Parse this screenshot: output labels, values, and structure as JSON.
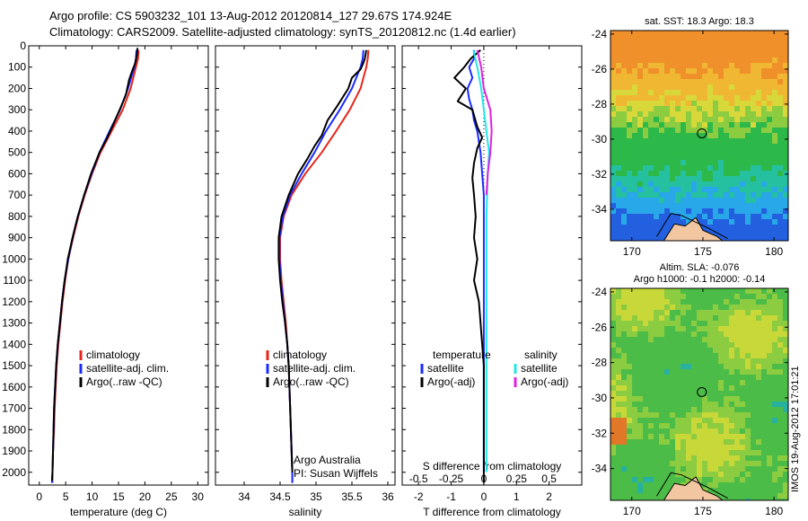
{
  "header": {
    "line1": "Argo profile: CS 5903232_101 13-Aug-2012 20120814_127 29.67S 174.924E",
    "line2": "Climatology: CARS2009. Satellite-adjusted climatology: synTS_20120812.nc (1.4d earlier)"
  },
  "stamp": "IMOS 19-Aug-2012 17:01:21",
  "depth_ticks": [
    0,
    100,
    200,
    300,
    400,
    500,
    600,
    700,
    800,
    900,
    1000,
    1100,
    1200,
    1300,
    1400,
    1500,
    1600,
    1700,
    1800,
    1900,
    2000
  ],
  "colors": {
    "climatology": "#e8251a",
    "satellite": "#1a2bff",
    "argo": "#000000",
    "sal_satellite": "#20e8e8",
    "sal_argo": "#e020e0"
  },
  "chart_data": [
    {
      "type": "line",
      "name": "temperature profile",
      "xlabel": "temperature (deg C)",
      "ylabel": "",
      "xlim": [
        -2,
        32
      ],
      "ylim": [
        2060,
        0
      ],
      "xticks": [
        0,
        5,
        10,
        15,
        20,
        25,
        30
      ],
      "legend": {
        "placement": "lower-center",
        "entries": [
          "climatology",
          "satellite-adj. clim.",
          "Argo(..raw -QC)"
        ]
      },
      "series": [
        {
          "name": "climatology",
          "color": "#e8251a",
          "points": [
            [
              18.8,
              20
            ],
            [
              18.7,
              60
            ],
            [
              18.3,
              100
            ],
            [
              17.3,
              200
            ],
            [
              15.8,
              300
            ],
            [
              13.7,
              400
            ],
            [
              11.6,
              500
            ],
            [
              10,
              600
            ],
            [
              8.6,
              700
            ],
            [
              7.4,
              800
            ],
            [
              6.4,
              900
            ],
            [
              5.5,
              1000
            ],
            [
              4.9,
              1100
            ],
            [
              4.4,
              1200
            ],
            [
              4,
              1300
            ],
            [
              3.6,
              1400
            ],
            [
              3.3,
              1500
            ],
            [
              3.1,
              1600
            ],
            [
              2.9,
              1700
            ],
            [
              2.8,
              1800
            ],
            [
              2.6,
              1900
            ],
            [
              2.5,
              2000
            ],
            [
              2.5,
              2050
            ]
          ]
        },
        {
          "name": "satellite-adj. clim.",
          "color": "#1a2bff",
          "points": [
            [
              18.4,
              20
            ],
            [
              18.3,
              60
            ],
            [
              18,
              100
            ],
            [
              16.8,
              200
            ],
            [
              15.3,
              300
            ],
            [
              13.3,
              400
            ],
            [
              11.4,
              500
            ],
            [
              9.9,
              600
            ],
            [
              8.5,
              700
            ],
            [
              7.3,
              800
            ],
            [
              6.3,
              900
            ],
            [
              5.5,
              1000
            ],
            [
              4.8,
              1100
            ],
            [
              4.3,
              1200
            ],
            [
              3.9,
              1300
            ],
            [
              3.5,
              1400
            ],
            [
              3.2,
              1500
            ],
            [
              3,
              1600
            ],
            [
              2.8,
              1700
            ],
            [
              2.7,
              1800
            ],
            [
              2.6,
              1900
            ],
            [
              2.5,
              2000
            ],
            [
              2.4,
              2050
            ]
          ]
        },
        {
          "name": "Argo(..raw -QC)",
          "color": "#000000",
          "points": [
            [
              18.6,
              10
            ],
            [
              18.5,
              40
            ],
            [
              18.2,
              80
            ],
            [
              17.7,
              110
            ],
            [
              17,
              160
            ],
            [
              16.4,
              230
            ],
            [
              15.4,
              290
            ],
            [
              13.8,
              380
            ],
            [
              12.9,
              430
            ],
            [
              11.4,
              500
            ],
            [
              9.8,
              600
            ],
            [
              8.5,
              700
            ],
            [
              7.3,
              800
            ],
            [
              6.3,
              900
            ],
            [
              5.4,
              1000
            ],
            [
              4.8,
              1100
            ],
            [
              4.3,
              1200
            ],
            [
              3.9,
              1300
            ],
            [
              3.5,
              1400
            ],
            [
              3.2,
              1500
            ],
            [
              3,
              1600
            ],
            [
              2.8,
              1700
            ],
            [
              2.7,
              1800
            ],
            [
              2.6,
              1900
            ],
            [
              2.5,
              2000
            ],
            [
              2.4,
              2040
            ]
          ]
        }
      ]
    },
    {
      "type": "line",
      "name": "salinity profile",
      "xlabel": "salinity",
      "ylabel": "",
      "xlim": [
        33.6,
        36.1
      ],
      "ylim": [
        2060,
        0
      ],
      "xticks": [
        34,
        34.5,
        35,
        35.5,
        36
      ],
      "legend": {
        "placement": "lower-center",
        "entries": [
          "climatology",
          "satellite-adj. clim.",
          "Argo(..raw -QC)"
        ]
      },
      "annotations": [
        "Argo Australia",
        "PI: Susan Wijffels"
      ],
      "series": [
        {
          "name": "climatology",
          "color": "#e8251a",
          "points": [
            [
              35.73,
              20
            ],
            [
              35.72,
              60
            ],
            [
              35.7,
              100
            ],
            [
              35.62,
              200
            ],
            [
              35.47,
              300
            ],
            [
              35.28,
              400
            ],
            [
              35.08,
              500
            ],
            [
              34.85,
              600
            ],
            [
              34.66,
              700
            ],
            [
              34.55,
              800
            ],
            [
              34.5,
              900
            ],
            [
              34.5,
              1000
            ],
            [
              34.52,
              1100
            ],
            [
              34.55,
              1200
            ],
            [
              34.58,
              1300
            ],
            [
              34.6,
              1400
            ],
            [
              34.62,
              1500
            ],
            [
              34.63,
              1600
            ],
            [
              34.64,
              1700
            ],
            [
              34.65,
              1800
            ],
            [
              34.66,
              1900
            ],
            [
              34.67,
              2000
            ],
            [
              34.67,
              2050
            ]
          ]
        },
        {
          "name": "satellite-adj. clim.",
          "color": "#1a2bff",
          "points": [
            [
              35.66,
              20
            ],
            [
              35.65,
              60
            ],
            [
              35.62,
              100
            ],
            [
              35.5,
              200
            ],
            [
              35.33,
              300
            ],
            [
              35.14,
              400
            ],
            [
              34.98,
              500
            ],
            [
              34.8,
              600
            ],
            [
              34.64,
              700
            ],
            [
              34.54,
              800
            ],
            [
              34.49,
              900
            ],
            [
              34.49,
              1000
            ],
            [
              34.51,
              1100
            ],
            [
              34.54,
              1200
            ],
            [
              34.57,
              1300
            ],
            [
              34.6,
              1400
            ],
            [
              34.62,
              1500
            ],
            [
              34.63,
              1600
            ],
            [
              34.64,
              1700
            ],
            [
              34.65,
              1800
            ],
            [
              34.66,
              1900
            ],
            [
              34.67,
              2000
            ],
            [
              34.67,
              2050
            ]
          ]
        },
        {
          "name": "Argo(..raw -QC)",
          "color": "#000000",
          "points": [
            [
              35.7,
              20
            ],
            [
              35.68,
              60
            ],
            [
              35.66,
              80
            ],
            [
              35.62,
              110
            ],
            [
              35.5,
              150
            ],
            [
              35.45,
              200
            ],
            [
              35.3,
              280
            ],
            [
              35.16,
              350
            ],
            [
              35.08,
              420
            ],
            [
              34.98,
              470
            ],
            [
              34.88,
              530
            ],
            [
              34.75,
              600
            ],
            [
              34.62,
              700
            ],
            [
              34.52,
              800
            ],
            [
              34.48,
              900
            ],
            [
              34.48,
              1000
            ],
            [
              34.5,
              1100
            ],
            [
              34.53,
              1200
            ],
            [
              34.57,
              1300
            ],
            [
              34.6,
              1400
            ],
            [
              34.62,
              1500
            ],
            [
              34.63,
              1600
            ],
            [
              34.64,
              1700
            ],
            [
              34.65,
              1800
            ],
            [
              34.66,
              1900
            ],
            [
              34.67,
              2000
            ]
          ]
        }
      ]
    },
    {
      "type": "line",
      "name": "difference from climatology",
      "xlabel": "T difference from climatology",
      "xlabel_top": "S difference from climatology",
      "ylabel": "",
      "xlim": [
        -2.5,
        3.0
      ],
      "ylim": [
        2060,
        0
      ],
      "xticks": [
        -2,
        -1,
        0,
        1,
        2
      ],
      "xticks_s": [
        "-0.5",
        "-0.25",
        "0",
        "0.25",
        "0.5"
      ],
      "legend_temperature": {
        "heading": "temperature",
        "entries": [
          "satellite",
          "Argo(-adj)"
        ]
      },
      "legend_salinity": {
        "heading": "salinity",
        "entries": [
          "satellite",
          "Argo(-adj)"
        ]
      },
      "series": [
        {
          "name": "satellite",
          "color": "#1a2bff",
          "points": [
            [
              -0.3,
              20
            ],
            [
              -0.3,
              60
            ],
            [
              -0.45,
              100
            ],
            [
              -0.35,
              150
            ],
            [
              -0.5,
              200
            ],
            [
              -0.45,
              250
            ],
            [
              -0.35,
              300
            ],
            [
              -0.3,
              350
            ],
            [
              -0.2,
              400
            ],
            [
              -0.15,
              450
            ],
            [
              -0.1,
              500
            ],
            [
              -0.05,
              600
            ],
            [
              0,
              700
            ],
            [
              0,
              1000
            ],
            [
              0,
              2000
            ]
          ]
        },
        {
          "name": "Argo(-adj)",
          "color": "#000000",
          "points": [
            [
              -0.1,
              20
            ],
            [
              -0.4,
              60
            ],
            [
              -0.6,
              100
            ],
            [
              -0.9,
              150
            ],
            [
              -0.55,
              200
            ],
            [
              -0.8,
              260
            ],
            [
              -0.35,
              300
            ],
            [
              -0.2,
              380
            ],
            [
              -0.05,
              430
            ],
            [
              -0.2,
              480
            ],
            [
              -0.3,
              550
            ],
            [
              -0.35,
              620
            ],
            [
              -0.3,
              700
            ],
            [
              -0.25,
              800
            ],
            [
              -0.3,
              900
            ],
            [
              -0.2,
              1000
            ],
            [
              -0.3,
              1100
            ],
            [
              -0.15,
              1200
            ],
            [
              -0.1,
              1300
            ],
            [
              -0.05,
              1400
            ],
            [
              0,
              1500
            ],
            [
              0,
              2050
            ]
          ]
        },
        {
          "name": "salinity satellite",
          "color": "#20e8e8",
          "points": [
            [
              -0.08,
              20
            ],
            [
              -0.05,
              100
            ],
            [
              -0.02,
              200
            ],
            [
              0.02,
              400
            ],
            [
              0.04,
              500
            ],
            [
              0.03,
              600
            ],
            [
              0.02,
              800
            ],
            [
              0.02,
              1000
            ],
            [
              0.02,
              1300
            ],
            [
              0.02,
              1600
            ],
            [
              0.02,
              2000
            ]
          ]
        },
        {
          "name": "salinity Argo(-adj)",
          "color": "#e020e0",
          "points": [
            [
              -0.05,
              20
            ],
            [
              -0.02,
              100
            ],
            [
              0,
              200
            ],
            [
              0.05,
              300
            ],
            [
              0.06,
              400
            ],
            [
              0.05,
              500
            ],
            [
              0.03,
              600
            ],
            [
              0.02,
              700
            ]
          ]
        }
      ]
    },
    {
      "type": "heatmap",
      "name": "satellite SST map",
      "title": "sat. SST: 18.3  Argo: 18.3",
      "xlim": [
        168.5,
        181
      ],
      "ylim": [
        -35.8,
        -23.8
      ],
      "xticks": [
        170,
        175,
        180
      ],
      "yticks": [
        -24,
        -26,
        -28,
        -30,
        -32,
        -34
      ],
      "marker": {
        "x": 174.924,
        "y": -29.67
      }
    },
    {
      "type": "heatmap",
      "name": "altimetry SLA map",
      "title_line1": "Altim. SLA: -0.076",
      "title_line2": "Argo h1000: -0.1  h2000: -0.14",
      "xlim": [
        168.5,
        181
      ],
      "ylim": [
        -35.8,
        -23.8
      ],
      "xticks": [
        170,
        175,
        180
      ],
      "yticks": [
        -24,
        -26,
        -28,
        -30,
        -32,
        -34
      ],
      "marker": {
        "x": 174.924,
        "y": -29.67
      }
    }
  ]
}
